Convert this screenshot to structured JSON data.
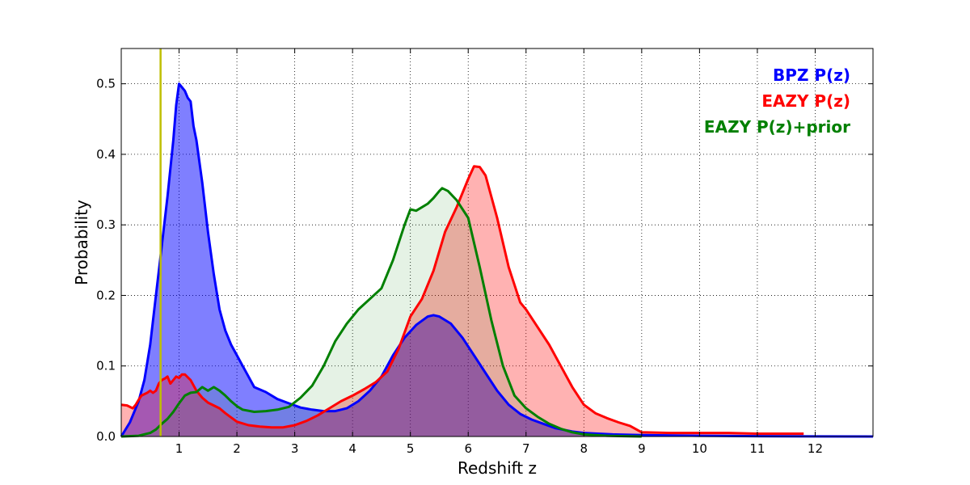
{
  "chart_data": {
    "type": "area",
    "title": "",
    "xlabel": "Redshift z",
    "ylabel": "Probability",
    "xlim": [
      0,
      13
    ],
    "ylim": [
      0,
      0.55
    ],
    "x_ticks": [
      1,
      2,
      3,
      4,
      5,
      6,
      7,
      8,
      9,
      10,
      11,
      12
    ],
    "y_ticks": [
      0.0,
      0.1,
      0.2,
      0.3,
      0.4,
      0.5
    ],
    "y_tick_labels": [
      "0.0",
      "0.1",
      "0.2",
      "0.3",
      "0.4",
      "0.5"
    ],
    "grid": true,
    "legend_position": "top-right",
    "vertical_line": {
      "x": 0.68,
      "color": "#bfbf00"
    },
    "series": [
      {
        "name": "BPZ P(z)",
        "color": "#0000ff",
        "fill": "#0000ff",
        "fill_opacity": 0.5,
        "points": [
          [
            0.0,
            0.0
          ],
          [
            0.15,
            0.02
          ],
          [
            0.3,
            0.05
          ],
          [
            0.4,
            0.08
          ],
          [
            0.5,
            0.13
          ],
          [
            0.6,
            0.2
          ],
          [
            0.7,
            0.27
          ],
          [
            0.8,
            0.34
          ],
          [
            0.85,
            0.38
          ],
          [
            0.9,
            0.42
          ],
          [
            0.95,
            0.47
          ],
          [
            1.0,
            0.5
          ],
          [
            1.05,
            0.495
          ],
          [
            1.1,
            0.49
          ],
          [
            1.15,
            0.48
          ],
          [
            1.2,
            0.475
          ],
          [
            1.25,
            0.44
          ],
          [
            1.3,
            0.42
          ],
          [
            1.4,
            0.36
          ],
          [
            1.5,
            0.29
          ],
          [
            1.6,
            0.23
          ],
          [
            1.7,
            0.18
          ],
          [
            1.8,
            0.15
          ],
          [
            1.9,
            0.13
          ],
          [
            2.0,
            0.115
          ],
          [
            2.1,
            0.1
          ],
          [
            2.2,
            0.085
          ],
          [
            2.3,
            0.07
          ],
          [
            2.5,
            0.063
          ],
          [
            2.7,
            0.053
          ],
          [
            2.9,
            0.047
          ],
          [
            3.1,
            0.041
          ],
          [
            3.3,
            0.038
          ],
          [
            3.5,
            0.036
          ],
          [
            3.7,
            0.036
          ],
          [
            3.9,
            0.04
          ],
          [
            4.1,
            0.05
          ],
          [
            4.3,
            0.065
          ],
          [
            4.5,
            0.085
          ],
          [
            4.7,
            0.115
          ],
          [
            4.9,
            0.14
          ],
          [
            5.1,
            0.158
          ],
          [
            5.3,
            0.17
          ],
          [
            5.4,
            0.172
          ],
          [
            5.5,
            0.17
          ],
          [
            5.7,
            0.16
          ],
          [
            5.9,
            0.14
          ],
          [
            6.1,
            0.115
          ],
          [
            6.3,
            0.09
          ],
          [
            6.5,
            0.065
          ],
          [
            6.7,
            0.045
          ],
          [
            6.9,
            0.032
          ],
          [
            7.1,
            0.024
          ],
          [
            7.3,
            0.018
          ],
          [
            7.5,
            0.012
          ],
          [
            7.8,
            0.007
          ],
          [
            8.0,
            0.005
          ],
          [
            8.5,
            0.003
          ],
          [
            9.0,
            0.002
          ],
          [
            10.0,
            0.001
          ],
          [
            11.0,
            0.0005
          ],
          [
            13.0,
            0.0
          ]
        ]
      },
      {
        "name": "EAZY P(z)",
        "color": "#ff0000",
        "fill": "#ff0000",
        "fill_opacity": 0.3,
        "points": [
          [
            0.0,
            0.045
          ],
          [
            0.1,
            0.044
          ],
          [
            0.2,
            0.04
          ],
          [
            0.25,
            0.045
          ],
          [
            0.3,
            0.052
          ],
          [
            0.35,
            0.058
          ],
          [
            0.4,
            0.06
          ],
          [
            0.45,
            0.062
          ],
          [
            0.5,
            0.065
          ],
          [
            0.55,
            0.062
          ],
          [
            0.6,
            0.065
          ],
          [
            0.65,
            0.075
          ],
          [
            0.7,
            0.08
          ],
          [
            0.75,
            0.082
          ],
          [
            0.8,
            0.085
          ],
          [
            0.85,
            0.075
          ],
          [
            0.9,
            0.08
          ],
          [
            0.95,
            0.085
          ],
          [
            1.0,
            0.083
          ],
          [
            1.05,
            0.088
          ],
          [
            1.1,
            0.088
          ],
          [
            1.2,
            0.08
          ],
          [
            1.3,
            0.065
          ],
          [
            1.4,
            0.055
          ],
          [
            1.5,
            0.048
          ],
          [
            1.6,
            0.044
          ],
          [
            1.7,
            0.04
          ],
          [
            1.8,
            0.033
          ],
          [
            1.9,
            0.027
          ],
          [
            2.0,
            0.021
          ],
          [
            2.2,
            0.016
          ],
          [
            2.4,
            0.014
          ],
          [
            2.6,
            0.013
          ],
          [
            2.8,
            0.013
          ],
          [
            3.0,
            0.016
          ],
          [
            3.2,
            0.022
          ],
          [
            3.4,
            0.03
          ],
          [
            3.6,
            0.04
          ],
          [
            3.8,
            0.05
          ],
          [
            4.0,
            0.058
          ],
          [
            4.2,
            0.067
          ],
          [
            4.4,
            0.077
          ],
          [
            4.6,
            0.092
          ],
          [
            4.8,
            0.125
          ],
          [
            5.0,
            0.17
          ],
          [
            5.2,
            0.195
          ],
          [
            5.4,
            0.235
          ],
          [
            5.6,
            0.29
          ],
          [
            5.8,
            0.325
          ],
          [
            6.0,
            0.365
          ],
          [
            6.1,
            0.383
          ],
          [
            6.2,
            0.382
          ],
          [
            6.3,
            0.37
          ],
          [
            6.5,
            0.31
          ],
          [
            6.7,
            0.24
          ],
          [
            6.9,
            0.19
          ],
          [
            7.0,
            0.18
          ],
          [
            7.2,
            0.155
          ],
          [
            7.4,
            0.13
          ],
          [
            7.6,
            0.1
          ],
          [
            7.8,
            0.07
          ],
          [
            8.0,
            0.045
          ],
          [
            8.2,
            0.033
          ],
          [
            8.4,
            0.026
          ],
          [
            8.6,
            0.02
          ],
          [
            8.8,
            0.015
          ],
          [
            9.0,
            0.006
          ],
          [
            9.5,
            0.005
          ],
          [
            10.0,
            0.005
          ],
          [
            10.5,
            0.005
          ],
          [
            11.0,
            0.004
          ],
          [
            11.8,
            0.004
          ]
        ]
      },
      {
        "name": "EAZY P(z)+prior",
        "color": "#008000",
        "fill": "#008000",
        "fill_opacity": 0.1,
        "points": [
          [
            0.0,
            0.0
          ],
          [
            0.3,
            0.001
          ],
          [
            0.5,
            0.005
          ],
          [
            0.6,
            0.01
          ],
          [
            0.7,
            0.018
          ],
          [
            0.8,
            0.025
          ],
          [
            0.9,
            0.035
          ],
          [
            1.0,
            0.047
          ],
          [
            1.1,
            0.058
          ],
          [
            1.2,
            0.062
          ],
          [
            1.3,
            0.063
          ],
          [
            1.4,
            0.07
          ],
          [
            1.5,
            0.065
          ],
          [
            1.6,
            0.07
          ],
          [
            1.7,
            0.065
          ],
          [
            1.8,
            0.058
          ],
          [
            1.9,
            0.05
          ],
          [
            2.0,
            0.043
          ],
          [
            2.1,
            0.038
          ],
          [
            2.3,
            0.035
          ],
          [
            2.5,
            0.036
          ],
          [
            2.7,
            0.038
          ],
          [
            2.9,
            0.042
          ],
          [
            3.1,
            0.055
          ],
          [
            3.3,
            0.072
          ],
          [
            3.5,
            0.1
          ],
          [
            3.7,
            0.135
          ],
          [
            3.9,
            0.16
          ],
          [
            4.1,
            0.18
          ],
          [
            4.3,
            0.195
          ],
          [
            4.5,
            0.21
          ],
          [
            4.7,
            0.25
          ],
          [
            4.9,
            0.3
          ],
          [
            5.0,
            0.322
          ],
          [
            5.1,
            0.32
          ],
          [
            5.3,
            0.33
          ],
          [
            5.4,
            0.338
          ],
          [
            5.5,
            0.348
          ],
          [
            5.55,
            0.352
          ],
          [
            5.65,
            0.348
          ],
          [
            5.8,
            0.335
          ],
          [
            6.0,
            0.31
          ],
          [
            6.2,
            0.24
          ],
          [
            6.4,
            0.165
          ],
          [
            6.6,
            0.1
          ],
          [
            6.8,
            0.058
          ],
          [
            7.0,
            0.04
          ],
          [
            7.2,
            0.028
          ],
          [
            7.4,
            0.018
          ],
          [
            7.6,
            0.011
          ],
          [
            7.8,
            0.006
          ],
          [
            8.0,
            0.003
          ],
          [
            8.4,
            0.001
          ],
          [
            9.0,
            0.0
          ]
        ]
      }
    ]
  }
}
